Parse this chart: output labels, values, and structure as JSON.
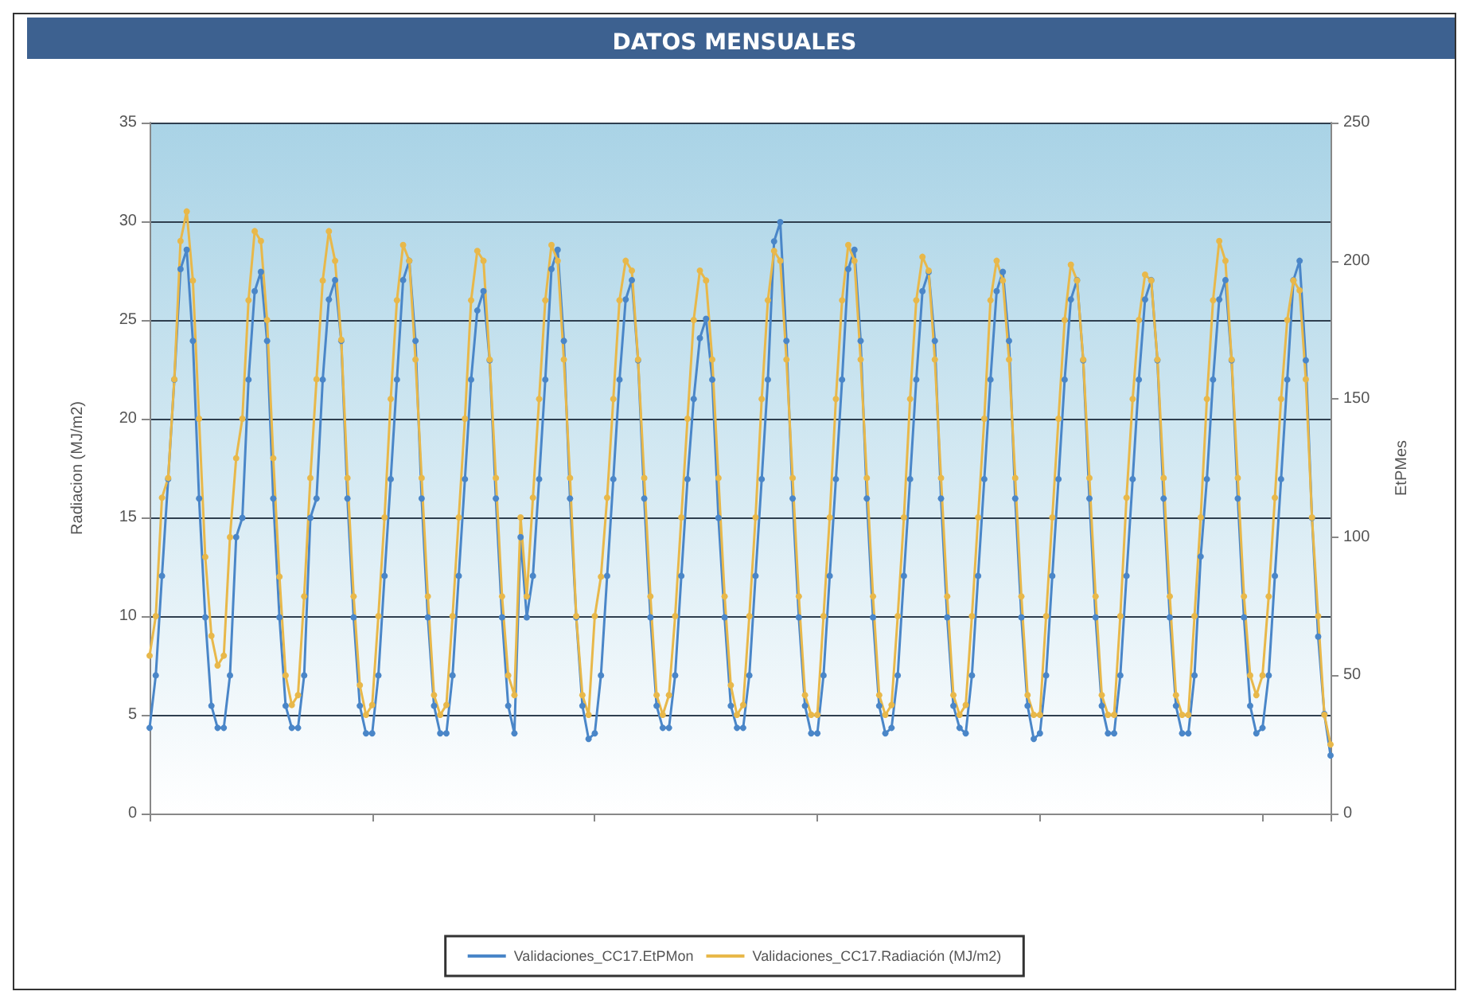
{
  "chart_data": {
    "type": "line",
    "title": "DATOS MENSUALES",
    "ylabel": "Radiacion (MJ/m2)",
    "y2label": "EtPMes",
    "categories": [
      null,
      null,
      null,
      null,
      null,
      null,
      null,
      null,
      null,
      null,
      null,
      null,
      null,
      null,
      null,
      null,
      null,
      null,
      null,
      null,
      null,
      null,
      null,
      null,
      null,
      null,
      null,
      null,
      null,
      null,
      null,
      null,
      null,
      null,
      null,
      null,
      null,
      null,
      null,
      null,
      null,
      null,
      null,
      null,
      null,
      null,
      null,
      null,
      null,
      null,
      null,
      null,
      null,
      null,
      null,
      null,
      null,
      null,
      null,
      null,
      null,
      null,
      null,
      null,
      null,
      null,
      null,
      null,
      null,
      null,
      null,
      null,
      null,
      null,
      null,
      null,
      null,
      null,
      null,
      null,
      null,
      null,
      null,
      null,
      null,
      null,
      null,
      null,
      null,
      null,
      null,
      null,
      null,
      null,
      null,
      null,
      null,
      null,
      null,
      null,
      null,
      null,
      null,
      null,
      null,
      null,
      null,
      null,
      null,
      null,
      null,
      null,
      null,
      null,
      null,
      null,
      null,
      null,
      null,
      null,
      null,
      null,
      null,
      null,
      null,
      null,
      null,
      null,
      null,
      null,
      null,
      null,
      null,
      null,
      null,
      null,
      null,
      null,
      null,
      null,
      null,
      null,
      null,
      null,
      null,
      null,
      null,
      null,
      null,
      null,
      null,
      null,
      null,
      null,
      null,
      null,
      null,
      null,
      null,
      null,
      null,
      null,
      null,
      null,
      null,
      null,
      null,
      null,
      null,
      null,
      null,
      null,
      null,
      null,
      null,
      null,
      null,
      null,
      null,
      null,
      null,
      null,
      null,
      null,
      null,
      null,
      null,
      null,
      null,
      null,
      null,
      null
    ],
    "series": [
      {
        "name": "Validaciones_CC17.EtPMon",
        "color": "#4a86c8",
        "axis": "y2",
        "values": [
          31,
          50,
          86,
          121,
          157,
          197,
          204,
          171,
          114,
          71,
          39,
          31,
          31,
          50,
          100,
          107,
          157,
          189,
          196,
          171,
          114,
          71,
          39,
          31,
          31,
          50,
          107,
          114,
          157,
          186,
          193,
          171,
          114,
          71,
          39,
          29,
          29,
          50,
          86,
          121,
          157,
          193,
          200,
          171,
          114,
          71,
          39,
          29,
          29,
          50,
          86,
          121,
          157,
          182,
          189,
          164,
          114,
          71,
          39,
          29,
          100,
          71,
          86,
          121,
          157,
          197,
          204,
          171,
          114,
          71,
          39,
          27,
          29,
          50,
          86,
          121,
          157,
          186,
          193,
          164,
          114,
          71,
          39,
          31,
          31,
          50,
          86,
          121,
          150,
          172,
          179,
          157,
          107,
          71,
          39,
          31,
          31,
          50,
          86,
          121,
          157,
          207,
          214,
          171,
          114,
          71,
          39,
          29,
          29,
          50,
          86,
          121,
          157,
          197,
          204,
          171,
          114,
          71,
          39,
          29,
          31,
          50,
          86,
          121,
          157,
          189,
          196,
          171,
          114,
          71,
          39,
          31,
          29,
          50,
          86,
          121,
          157,
          189,
          196,
          171,
          114,
          71,
          39,
          27,
          29,
          50,
          86,
          121,
          157,
          186,
          193,
          164,
          114,
          71,
          39,
          29,
          29,
          50,
          86,
          121,
          157,
          186,
          193,
          164,
          114,
          71,
          39,
          29,
          29,
          50,
          93,
          121,
          157,
          186,
          193,
          164,
          114,
          71,
          39,
          29,
          31,
          50,
          86,
          121,
          157,
          193,
          200,
          164,
          107,
          64,
          36,
          21
        ]
      },
      {
        "name": "Validaciones_CC17.Radiación (MJ/m2)",
        "color": "#e8b84a",
        "values": [
          8,
          10,
          16,
          17,
          22,
          29,
          30.5,
          27,
          20,
          13,
          9,
          7.5,
          8,
          14,
          18,
          20,
          26,
          29.5,
          29,
          25,
          18,
          12,
          7,
          5.5,
          6,
          11,
          17,
          22,
          27,
          29.5,
          28,
          24,
          17,
          11,
          6.5,
          5,
          5.5,
          10,
          15,
          21,
          26,
          28.8,
          28,
          23,
          17,
          11,
          6,
          5,
          5.5,
          10,
          15,
          20,
          26,
          28.5,
          28,
          23,
          17,
          11,
          7,
          6,
          15,
          11,
          16,
          21,
          26,
          28.8,
          28,
          23,
          17,
          10,
          6,
          5,
          10,
          12,
          16,
          21,
          26,
          28,
          27.5,
          23,
          17,
          11,
          6,
          5,
          6,
          10,
          15,
          20,
          25,
          27.5,
          27,
          23,
          17,
          11,
          6.5,
          5,
          5.5,
          10,
          15,
          21,
          26,
          28.5,
          28,
          23,
          17,
          11,
          6,
          5,
          5,
          10,
          15,
          21,
          26,
          28.8,
          28,
          23,
          17,
          11,
          6,
          5,
          5.5,
          10,
          15,
          21,
          26,
          28.2,
          27.5,
          23,
          17,
          11,
          6,
          5,
          5.5,
          10,
          15,
          20,
          26,
          28,
          27,
          23,
          17,
          11,
          6,
          5,
          5,
          10,
          15,
          20,
          25,
          27.8,
          27,
          23,
          17,
          11,
          6,
          5,
          5,
          10,
          16,
          21,
          25,
          27.3,
          27,
          23,
          17,
          11,
          6,
          5,
          5,
          10,
          15,
          21,
          26,
          29,
          28,
          23,
          17,
          11,
          7,
          6,
          7,
          11,
          16,
          21,
          25,
          27,
          26.5,
          22,
          15,
          10,
          5,
          3.5
        ]
      }
    ],
    "ylim": [
      0,
      35
    ],
    "yticks": [
      0,
      5,
      10,
      15,
      20,
      25,
      30,
      35
    ],
    "y2lim": [
      0,
      250
    ],
    "y2ticks": [
      0,
      50,
      100,
      150,
      200,
      250
    ],
    "grid": "y",
    "legend": "bottom",
    "marker": "circle",
    "line_style": "solid",
    "tick_labels": "y"
  }
}
